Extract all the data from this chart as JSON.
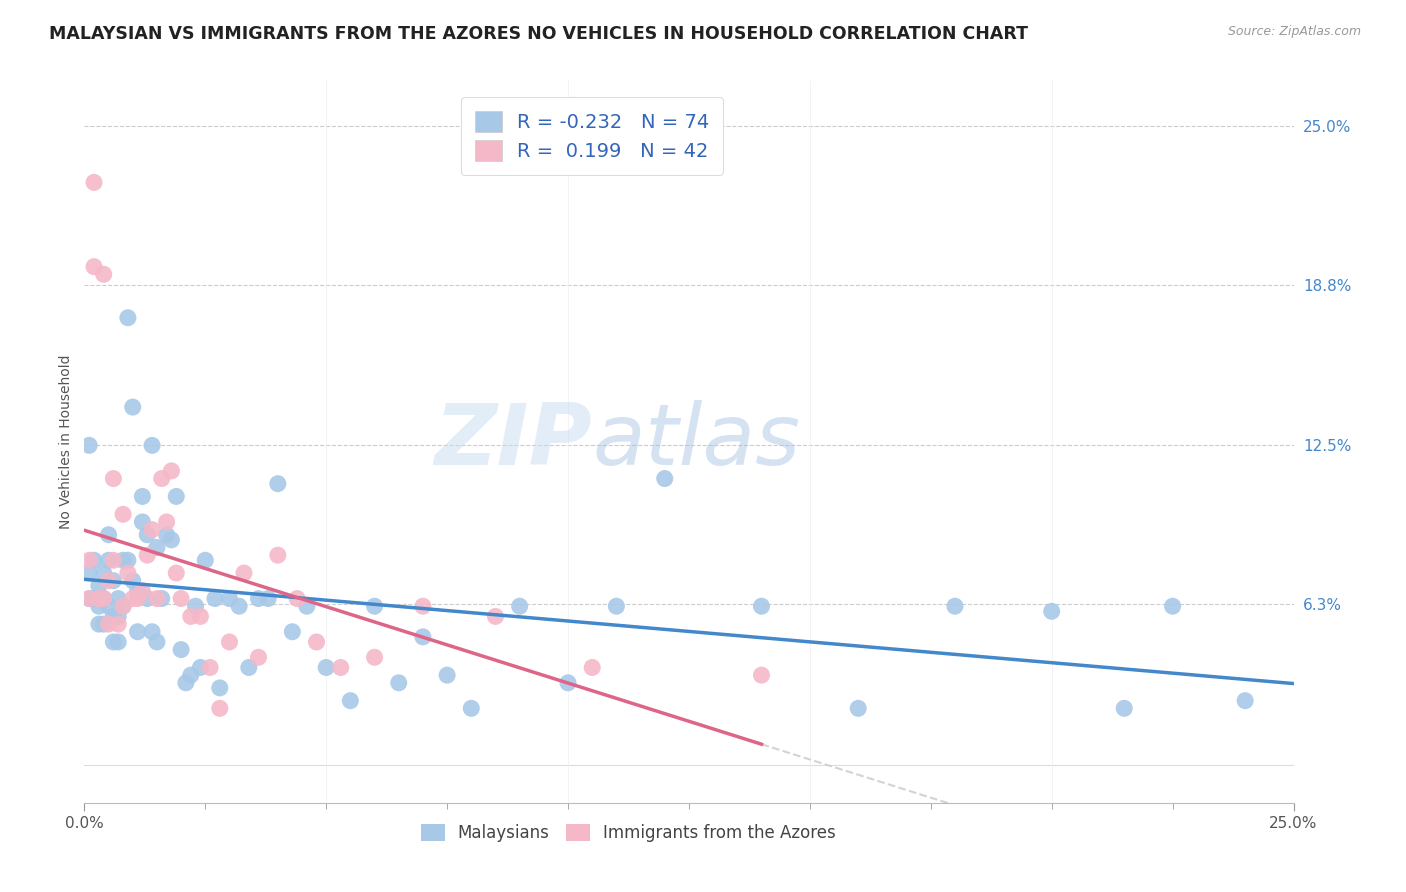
{
  "title": "MALAYSIAN VS IMMIGRANTS FROM THE AZORES NO VEHICLES IN HOUSEHOLD CORRELATION CHART",
  "source": "Source: ZipAtlas.com",
  "ylabel": "No Vehicles in Household",
  "ylabel_ticks": [
    "6.3%",
    "12.5%",
    "18.8%",
    "25.0%"
  ],
  "ylabel_tick_vals": [
    0.063,
    0.125,
    0.188,
    0.25
  ],
  "xmin": 0.0,
  "xmax": 0.25,
  "ymin": -0.015,
  "ymax": 0.268,
  "watermark_zip": "ZIP",
  "watermark_atlas": "atlas",
  "legend_label1": "Malaysians",
  "legend_label2": "Immigrants from the Azores",
  "r1": -0.232,
  "n1": 74,
  "r2": 0.199,
  "n2": 42,
  "blue_color": "#a8c8e8",
  "pink_color": "#f4b8c8",
  "blue_line_color": "#4488cc",
  "pink_line_color": "#dd6688",
  "title_fontsize": 12.5,
  "axis_label_fontsize": 10,
  "tick_fontsize": 11,
  "malaysians_x": [
    0.001,
    0.001,
    0.001,
    0.002,
    0.002,
    0.003,
    0.003,
    0.003,
    0.004,
    0.004,
    0.004,
    0.005,
    0.005,
    0.005,
    0.006,
    0.006,
    0.006,
    0.007,
    0.007,
    0.007,
    0.008,
    0.008,
    0.009,
    0.009,
    0.01,
    0.01,
    0.011,
    0.011,
    0.012,
    0.012,
    0.013,
    0.013,
    0.014,
    0.014,
    0.015,
    0.015,
    0.016,
    0.017,
    0.018,
    0.019,
    0.02,
    0.021,
    0.022,
    0.023,
    0.024,
    0.025,
    0.027,
    0.028,
    0.03,
    0.032,
    0.034,
    0.036,
    0.038,
    0.04,
    0.043,
    0.046,
    0.05,
    0.055,
    0.06,
    0.065,
    0.07,
    0.075,
    0.08,
    0.09,
    0.1,
    0.11,
    0.12,
    0.14,
    0.16,
    0.18,
    0.2,
    0.215,
    0.225,
    0.24
  ],
  "malaysians_y": [
    0.125,
    0.075,
    0.065,
    0.08,
    0.065,
    0.07,
    0.062,
    0.055,
    0.075,
    0.065,
    0.055,
    0.09,
    0.08,
    0.062,
    0.072,
    0.058,
    0.048,
    0.065,
    0.058,
    0.048,
    0.08,
    0.062,
    0.175,
    0.08,
    0.14,
    0.072,
    0.068,
    0.052,
    0.105,
    0.095,
    0.09,
    0.065,
    0.125,
    0.052,
    0.085,
    0.048,
    0.065,
    0.09,
    0.088,
    0.105,
    0.045,
    0.032,
    0.035,
    0.062,
    0.038,
    0.08,
    0.065,
    0.03,
    0.065,
    0.062,
    0.038,
    0.065,
    0.065,
    0.11,
    0.052,
    0.062,
    0.038,
    0.025,
    0.062,
    0.032,
    0.05,
    0.035,
    0.022,
    0.062,
    0.032,
    0.062,
    0.112,
    0.062,
    0.022,
    0.062,
    0.06,
    0.022,
    0.062,
    0.025
  ],
  "azores_x": [
    0.001,
    0.001,
    0.002,
    0.002,
    0.003,
    0.004,
    0.004,
    0.005,
    0.005,
    0.006,
    0.006,
    0.007,
    0.008,
    0.008,
    0.009,
    0.01,
    0.011,
    0.012,
    0.013,
    0.014,
    0.015,
    0.016,
    0.017,
    0.018,
    0.019,
    0.02,
    0.022,
    0.024,
    0.026,
    0.028,
    0.03,
    0.033,
    0.036,
    0.04,
    0.044,
    0.048,
    0.053,
    0.06,
    0.07,
    0.085,
    0.105,
    0.14
  ],
  "azores_y": [
    0.08,
    0.065,
    0.228,
    0.195,
    0.065,
    0.192,
    0.065,
    0.072,
    0.055,
    0.112,
    0.08,
    0.055,
    0.098,
    0.062,
    0.075,
    0.065,
    0.065,
    0.068,
    0.082,
    0.092,
    0.065,
    0.112,
    0.095,
    0.115,
    0.075,
    0.065,
    0.058,
    0.058,
    0.038,
    0.022,
    0.048,
    0.075,
    0.042,
    0.082,
    0.065,
    0.048,
    0.038,
    0.042,
    0.062,
    0.058,
    0.038,
    0.035
  ]
}
